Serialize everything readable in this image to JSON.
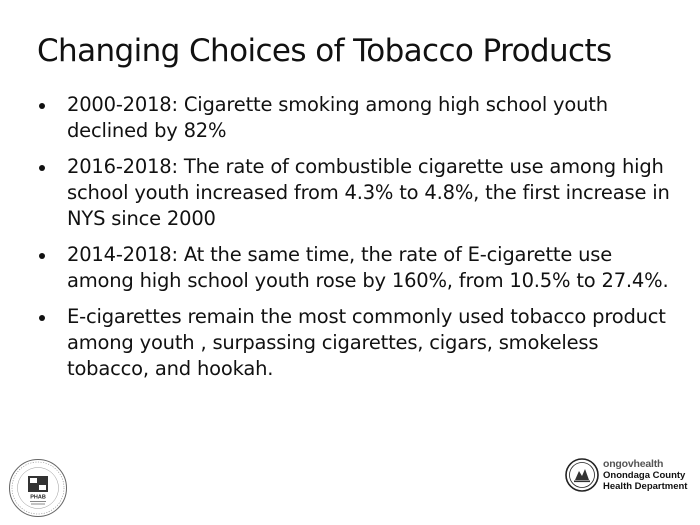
{
  "slide": {
    "title": "Changing Choices of Tobacco Products",
    "bullets": [
      "2000-2018: Cigarette smoking among high school youth declined by 82%",
      "2016-2018: The rate of combustible cigarette use among high school youth increased from 4.3% to 4.8%, the first increase in NYS since 2000",
      "2014-2018: At the same time, the rate of E-cigarette use among high school youth rose by 160%, from 10.5% to 27.4%.",
      "E-cigarettes  remain  the most  commonly  used tobacco product among youth , surpassing cigarettes, cigars, smokeless tobacco, and hookah."
    ]
  },
  "logos": {
    "seal_icon": "phab-accreditation-seal-icon",
    "seal_text": "PHAB",
    "org_icon": "onondaga-county-emblem-icon",
    "org_line1": "ongovhealth",
    "org_line2": "Onondaga County",
    "org_line3": "Health Department"
  }
}
